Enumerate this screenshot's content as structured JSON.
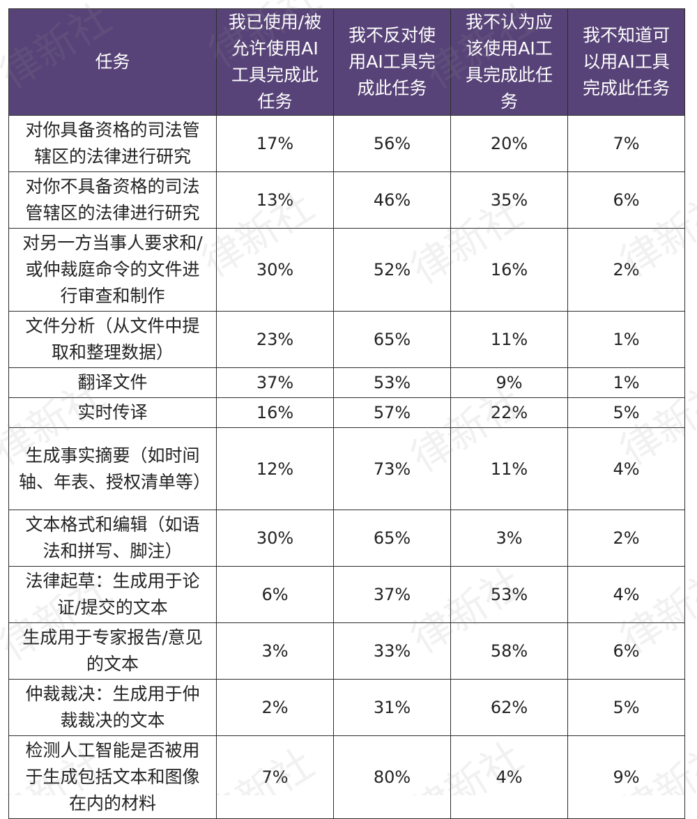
{
  "table": {
    "headers": [
      "任务",
      "我已使用/被允许使用AI工具完成此任务",
      "我不反对使用AI工具完成此任务",
      "我不认为应该使用AI工具完成此任务",
      "我不知道可以用AI工具完成此任务"
    ],
    "rows": [
      {
        "task": "对你具备资格的司法管辖区的法律进行研究",
        "v1": "17%",
        "v2": "56%",
        "v3": "20%",
        "v4": "7%"
      },
      {
        "task": "对你不具备资格的司法管辖区的法律进行研究",
        "v1": "13%",
        "v2": "46%",
        "v3": "35%",
        "v4": "6%"
      },
      {
        "task": "对另一方当事人要求和/或仲裁庭命令的文件进行审查和制作",
        "v1": "30%",
        "v2": "52%",
        "v3": "16%",
        "v4": "2%"
      },
      {
        "task": "文件分析（从文件中提取和整理数据）",
        "v1": "23%",
        "v2": "65%",
        "v3": "11%",
        "v4": "1%"
      },
      {
        "task": "翻译文件",
        "v1": "37%",
        "v2": "53%",
        "v3": "9%",
        "v4": "1%"
      },
      {
        "task": "实时传译",
        "v1": "16%",
        "v2": "57%",
        "v3": "22%",
        "v4": "5%"
      },
      {
        "task": "生成事实摘要（如时间轴、年表、授权清单等）",
        "v1": "12%",
        "v2": "73%",
        "v3": "11%",
        "v4": "4%"
      },
      {
        "task": "文本格式和编辑（如语法和拼写、脚注）",
        "v1": "30%",
        "v2": "65%",
        "v3": "3%",
        "v4": "2%"
      },
      {
        "task": "法律起草：生成用于论证/提交的文本",
        "v1": "6%",
        "v2": "37%",
        "v3": "53%",
        "v4": "4%"
      },
      {
        "task": "生成用于专家报告/意见的文本",
        "v1": "3%",
        "v2": "33%",
        "v3": "58%",
        "v4": "6%"
      },
      {
        "task": "仲裁裁决：生成用于仲裁裁决的文本",
        "v1": "2%",
        "v2": "31%",
        "v3": "62%",
        "v4": "5%"
      },
      {
        "task": "检测人工智能是否被用于生成包括文本和图像在内的材料",
        "v1": "7%",
        "v2": "80%",
        "v3": "4%",
        "v4": "9%"
      }
    ]
  },
  "watermark": "律新社",
  "colors": {
    "header_bg": "#584378",
    "header_text": "#ffffff",
    "border": "#2b2b2b"
  }
}
